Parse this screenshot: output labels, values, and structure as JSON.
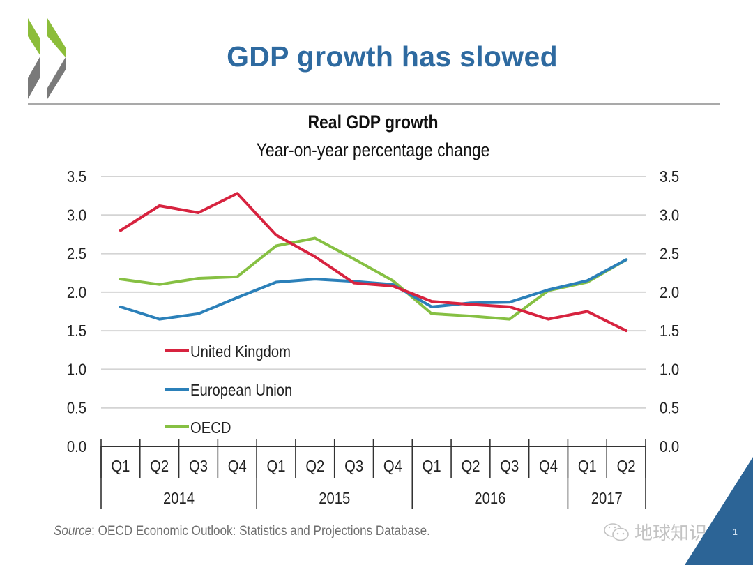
{
  "slide": {
    "title": "GDP growth has slowed",
    "logo": "oecd-chevron-logo",
    "page_number": "1",
    "source_label": "Source",
    "source_text": ": OECD Economic Outlook: Statistics and Projections Database.",
    "watermark": "地球知识局",
    "watermark_icon": "wechat-icon",
    "colors": {
      "title": "#2e6aa0",
      "logo_green": "#8cbd3a",
      "logo_grey": "#7a7a7a",
      "corner_blue": "#2c6496"
    }
  },
  "chart_data": {
    "type": "line",
    "title": "Real GDP growth",
    "subtitle": "Year-on-year percentage change",
    "xlabel": "",
    "ylabel": "",
    "ylim": [
      0,
      3.5
    ],
    "yticks": [
      "0.0",
      "0.5",
      "1.0",
      "1.5",
      "2.0",
      "2.5",
      "3.0",
      "3.5"
    ],
    "ytick_values": [
      0,
      0.5,
      1.0,
      1.5,
      2.0,
      2.5,
      3.0,
      3.5
    ],
    "secondary_y_axis": true,
    "grid": true,
    "categories": [
      "Q1",
      "Q2",
      "Q3",
      "Q4",
      "Q1",
      "Q2",
      "Q3",
      "Q4",
      "Q1",
      "Q2",
      "Q3",
      "Q4",
      "Q1",
      "Q2"
    ],
    "year_groups": [
      {
        "label": "2014",
        "count": 4
      },
      {
        "label": "2015",
        "count": 4
      },
      {
        "label": "2016",
        "count": 4
      },
      {
        "label": "2017",
        "count": 2
      }
    ],
    "legend_position": "lower-left",
    "series": [
      {
        "name": "United Kingdom",
        "color": "#d7233f",
        "values": [
          2.8,
          3.12,
          3.03,
          3.28,
          2.74,
          2.46,
          2.12,
          2.08,
          1.88,
          1.84,
          1.81,
          1.65,
          1.75,
          1.5
        ]
      },
      {
        "name": "European Union",
        "color": "#2b80b9",
        "values": [
          1.81,
          1.65,
          1.72,
          1.93,
          2.13,
          2.17,
          2.14,
          2.1,
          1.81,
          1.86,
          1.87,
          2.03,
          2.15,
          2.42
        ]
      },
      {
        "name": "OECD",
        "color": "#86c043",
        "values": [
          2.17,
          2.1,
          2.18,
          2.2,
          2.6,
          2.7,
          2.43,
          2.15,
          1.72,
          1.69,
          1.65,
          2.02,
          2.13,
          2.42
        ]
      }
    ]
  }
}
